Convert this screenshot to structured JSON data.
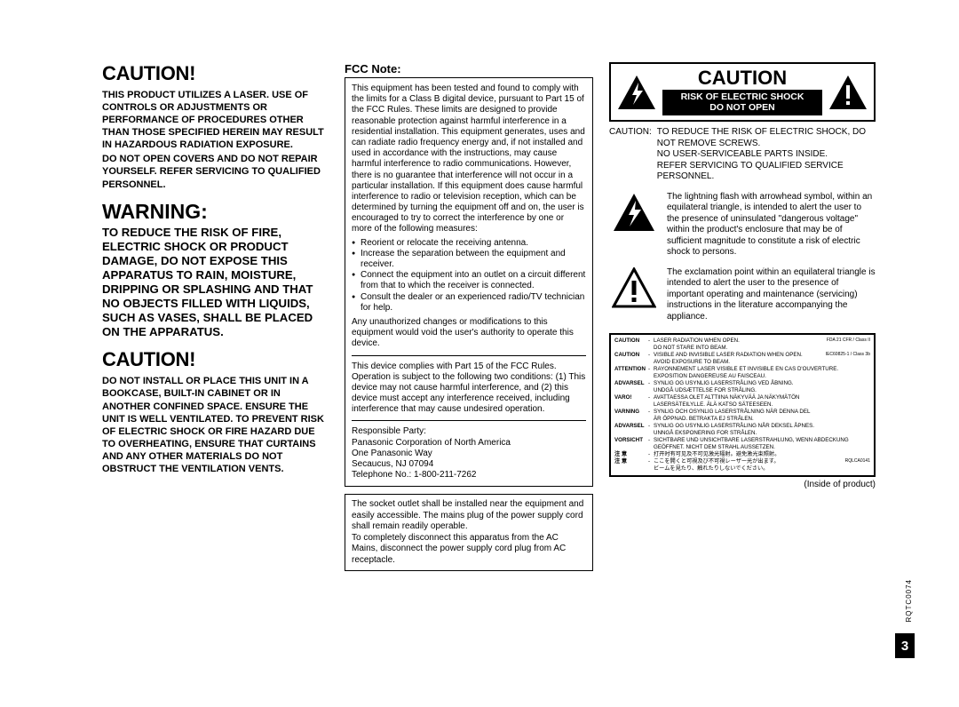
{
  "col1": {
    "caution1_header": "CAUTION!",
    "laser_para": "THIS PRODUCT UTILIZES A LASER. USE OF CONTROLS OR ADJUSTMENTS OR PERFORMANCE OF PROCEDURES OTHER THAN THOSE SPECIFIED HEREIN MAY RESULT IN HAZARDOUS RADIATION EXPOSURE.",
    "covers_para": "DO NOT OPEN COVERS AND DO NOT REPAIR YOURSELF. REFER SERVICING TO QUALIFIED PERSONNEL.",
    "warning_header": "WARNING:",
    "warning_para": "TO REDUCE THE RISK OF FIRE, ELECTRIC SHOCK OR PRODUCT DAMAGE, DO NOT EXPOSE THIS APPARATUS TO RAIN, MOISTURE, DRIPPING OR SPLASHING AND THAT NO OBJECTS FILLED WITH LIQUIDS, SUCH AS VASES, SHALL BE PLACED ON THE APPARATUS.",
    "caution2_header": "CAUTION!",
    "vent_para": "DO NOT INSTALL OR PLACE THIS UNIT IN A BOOKCASE, BUILT-IN CABINET OR IN ANOTHER CONFINED SPACE. ENSURE THE UNIT IS WELL VENTILATED. TO PREVENT RISK OF ELECTRIC SHOCK OR FIRE HAZARD DUE TO OVERHEATING, ENSURE THAT CURTAINS AND ANY OTHER MATERIALS DO NOT OBSTRUCT THE VENTILATION VENTS."
  },
  "col2": {
    "fcc_title": "FCC Note:",
    "fcc_intro": "This equipment has been tested and found to comply with the limits for a Class B digital device, pursuant to Part 15 of the FCC Rules. These limits are designed to provide reasonable protection against harmful interference in a residential installation. This equipment generates, uses and can radiate radio frequency energy and, if not installed and used in accordance with the instructions, may cause harmful interference to radio communications. However, there is no guarantee that interference will not occur in a particular installation. If this equipment does cause harmful interference to radio or television reception, which can be determined by turning the equipment off and on, the user is encouraged to try to correct the interference by one or more of the following measures:",
    "bullets": [
      "Reorient or relocate the receiving antenna.",
      "Increase the separation between the equipment and receiver.",
      "Connect the equipment into an outlet on a circuit different from that to which the receiver is connected.",
      "Consult the dealer or an experienced radio/TV technician for help."
    ],
    "unauth": "Any unauthorized changes or modifications to this equipment would void the user's authority to operate this device.",
    "part15": "This device complies with Part 15 of the FCC Rules. Operation is subject to the following two conditions: (1) This device may not cause harmful interference, and (2) this device must accept any interference received, including interference that may cause undesired operation.",
    "responsible_label": "Responsible Party:",
    "responsible_name": "Panasonic Corporation of North America",
    "address1": "One Panasonic Way",
    "address2": "Secaucus, NJ 07094",
    "telephone": "Telephone No.: 1-800-211-7262",
    "socket": "The socket outlet shall be installed near the equipment and easily accessible. The mains plug of the power supply cord shall remain readily operable.\nTo completely disconnect this apparatus from the AC Mains, disconnect the power supply cord plug from AC receptacle."
  },
  "col3": {
    "shock_caption": "CAUTION",
    "shock_line1": "RISK OF ELECTRIC SHOCK",
    "shock_line2": "DO NOT OPEN",
    "caution_label": "CAUTION:",
    "caution_body": "TO REDUCE THE RISK OF ELECTRIC SHOCK, DO NOT REMOVE SCREWS.\nNO USER-SERVICEABLE PARTS INSIDE.\nREFER SERVICING TO QUALIFIED SERVICE PERSONNEL.",
    "lightning_text": "The lightning flash with arrowhead symbol, within an equilateral triangle, is intended to alert the user to the presence of uninsulated \"dangerous voltage\" within the product's enclosure that may be of sufficient magnitude to constitute a risk of electric shock to persons.",
    "exclaim_text": "The exclamation point within an equilateral triangle is intended to alert the user to the presence of important operating and maintenance (servicing) instructions in the literature accompanying the appliance.",
    "laser_label": {
      "rows": [
        {
          "lbl": "CAUTION",
          "txt": "LASER RADIATION WHEN OPEN.\nDO NOT STARE INTO BEAM.",
          "ref": "FDA 21 CFR / Class II"
        },
        {
          "lbl": "CAUTION",
          "txt": "VISIBLE AND INVISIBLE LASER RADIATION WHEN OPEN.\nAVOID EXPOSURE TO BEAM.",
          "ref": "IEC60825-1 / Class 3b"
        },
        {
          "lbl": "ATTENTION",
          "txt": "RAYONNEMENT LASER VISIBLE ET INVISIBLE EN CAS D'OUVERTURE.\nEXPOSITION DANGEREUSE AU FAISCEAU.",
          "ref": ""
        },
        {
          "lbl": "ADVARSEL",
          "txt": "SYNLIG OG USYNLIG LASERSTRÅLING VED ÅBNING.\nUNDGÅ UDSÆTTELSE FOR STRÅLING.",
          "ref": ""
        },
        {
          "lbl": "VARO!",
          "txt": "AVATTAESSA OLET ALTTIINA NÄKYVÄÄ JA NÄKYMÄTÖN\nLASERSÄTEILYLLE. ÄLÄ KATSO SÄTEESEEN.",
          "ref": ""
        },
        {
          "lbl": "VARNING",
          "txt": "SYNLIG OCH OSYNLIG LASERSTRÅLNING NÄR DENNA DEL\nÄR ÖPPNAD. BETRAKTA EJ STRÅLEN.",
          "ref": ""
        },
        {
          "lbl": "ADVARSEL",
          "txt": "SYNLIG OG USYNLIG LASERSTRÅLING NÅR DEKSEL ÅPNES.\nUNNGÅ EKSPONERING FOR STRÅLEN.",
          "ref": ""
        },
        {
          "lbl": "VORSICHT",
          "txt": "SICHTBARE UND UNSICHTBARE LASERSTRAHLUNG, WENN ABDECKUNG\nGEÖFFNET. NICHT DEM STRAHL AUSSETZEN.",
          "ref": ""
        },
        {
          "lbl": "注 意",
          "txt": "打开时有可见及不可见激光辐射。避免激光束照射。",
          "ref": ""
        },
        {
          "lbl": "注 意",
          "txt": "ここを開くと可視及び不可視レーザー光が出ます。\nビームを見たり、触れたりしないでください。",
          "ref": "RQLCA0141"
        }
      ]
    },
    "inside": "(Inside of product)"
  },
  "side_code": "RQTC0074",
  "page_number": "3",
  "colors": {
    "black": "#000000",
    "white": "#ffffff"
  }
}
